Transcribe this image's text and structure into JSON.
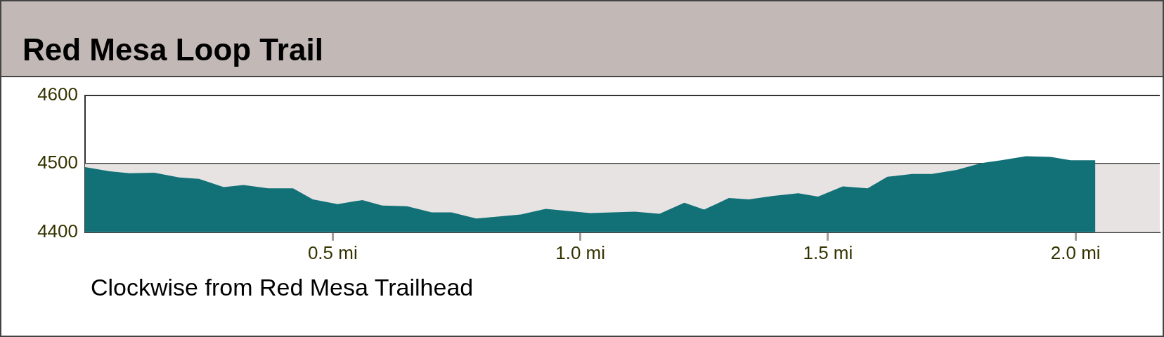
{
  "chart_data": {
    "type": "area",
    "title": "Red Mesa Loop Trail",
    "annotations": [
      "Clockwise from Red Mesa Trailhead"
    ],
    "x": [
      0,
      0.05,
      0.09,
      0.14,
      0.19,
      0.23,
      0.28,
      0.32,
      0.37,
      0.42,
      0.46,
      0.51,
      0.56,
      0.6,
      0.65,
      0.7,
      0.74,
      0.79,
      0.88,
      0.93,
      0.99,
      1.02,
      1.11,
      1.16,
      1.21,
      1.25,
      1.3,
      1.34,
      1.39,
      1.44,
      1.48,
      1.53,
      1.58,
      1.62,
      1.67,
      1.71,
      1.76,
      1.81,
      1.85,
      1.9,
      1.95,
      1.99,
      2.04
    ],
    "values": [
      4495,
      4489,
      4486,
      4487,
      4480,
      4478,
      4466,
      4469,
      4464,
      4464,
      4448,
      4441,
      4447,
      4439,
      4438,
      4429,
      4429,
      4420,
      4426,
      4434,
      4430,
      4428,
      4430,
      4427,
      4443,
      4433,
      4450,
      4448,
      4453,
      4457,
      4452,
      4467,
      4464,
      4481,
      4485,
      4485,
      4491,
      4501,
      4505,
      4511,
      4510,
      4505,
      4505
    ],
    "color": "#127177",
    "xlim": [
      0,
      2.17
    ],
    "xticks": [
      {
        "value": 0.5,
        "label": "0.5 mi"
      },
      {
        "value": 1,
        "label": "1.0 mi"
      },
      {
        "value": 1.5,
        "label": "1.5 mi"
      },
      {
        "value": 2,
        "label": "2.0 mi"
      }
    ],
    "ylim": [
      4400,
      4600
    ],
    "yticks": [
      4400,
      4500,
      4600
    ],
    "grid": "y",
    "bands": [
      {
        "axis": "y",
        "from": 4400,
        "to": 4500,
        "color": "#e7e3e3"
      }
    ]
  }
}
